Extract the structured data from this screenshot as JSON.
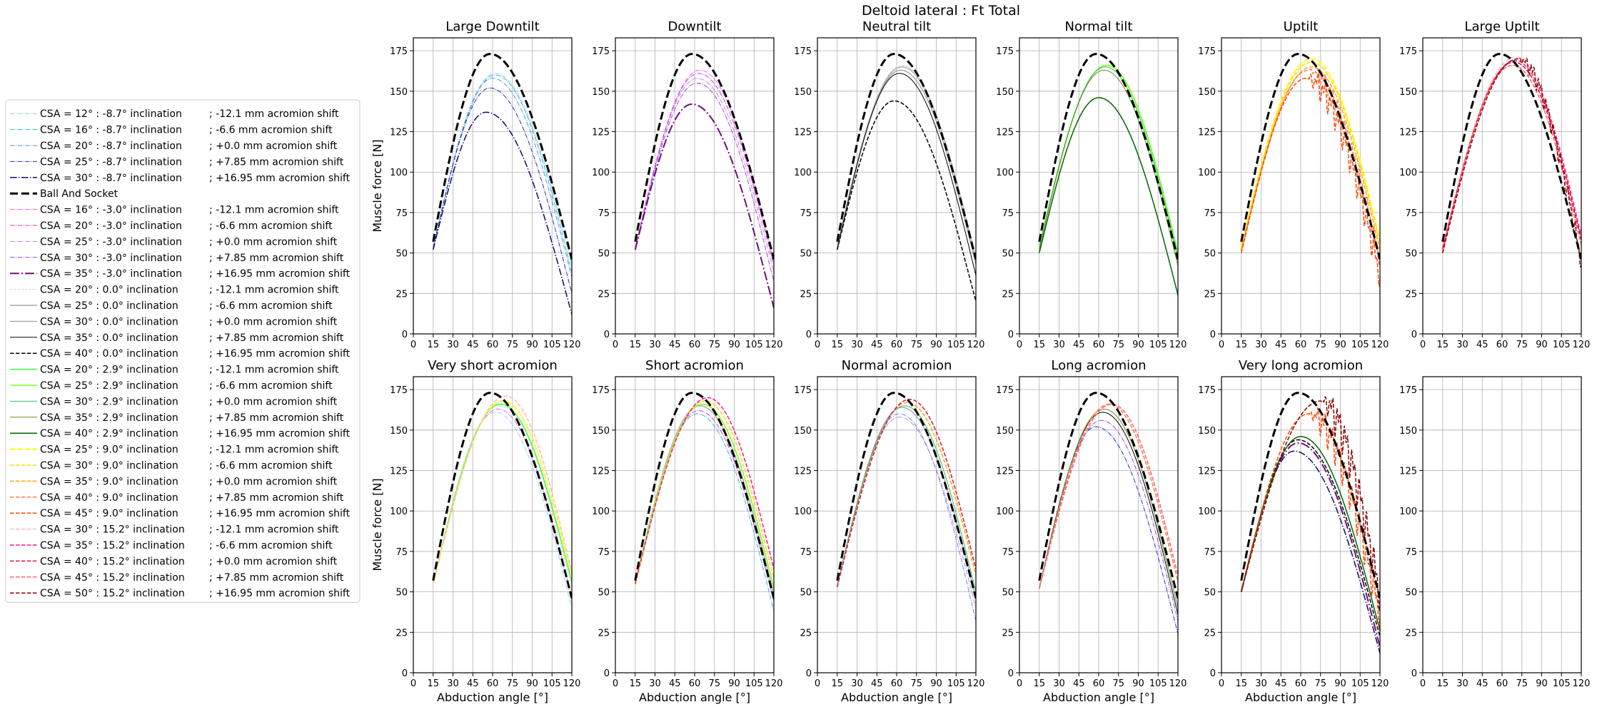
{
  "suptitle": "Deltoid lateral : Ft Total",
  "colors": {
    "ball_and_socket": "#000000",
    "grid": "#b0b0b0",
    "legend_border": "#cccccc"
  },
  "legend": [
    {
      "csa": "CSA = 12° : -8.7° inclination",
      "shift": "; -12.1 mm acromion shift",
      "color": "#7fd6e3",
      "dash": "dashdot",
      "width": 1
    },
    {
      "csa": "CSA = 16° : -8.7° inclination",
      "shift": "; -6.6 mm acromion shift",
      "color": "#29b6d8",
      "dash": "dashdot",
      "width": 1
    },
    {
      "csa": "CSA = 20° : -8.7° inclination",
      "shift": "; +0.0 mm acromion shift",
      "color": "#5c8fe0",
      "dash": "dashdot",
      "width": 1
    },
    {
      "csa": "CSA = 25° : -8.7° inclination",
      "shift": "; +7.85 mm acromion shift",
      "color": "#2231b8",
      "dash": "dashdot",
      "width": 1
    },
    {
      "csa": "CSA = 30° : -8.7° inclination",
      "shift": "; +16.95 mm acromion shift",
      "color": "#0b0b6b",
      "dash": "dashdot",
      "width": 1.5
    },
    {
      "csa": "Ball And Socket",
      "shift": "",
      "color": "#000000",
      "dash": "dashed",
      "width": 3
    },
    {
      "csa": "CSA = 16° : -3.0° inclination",
      "shift": "; -12.1 mm acromion shift",
      "color": "#ff55ff",
      "dash": "dashdot",
      "width": 1
    },
    {
      "csa": "CSA = 20° : -3.0° inclination",
      "shift": "; -6.6 mm acromion shift",
      "color": "#d43ad4",
      "dash": "dashdot",
      "width": 1
    },
    {
      "csa": "CSA = 25° : -3.0° inclination",
      "shift": "; +0.0 mm acromion shift",
      "color": "#c080e8",
      "dash": "dashdot",
      "width": 1
    },
    {
      "csa": "CSA = 30° : -3.0° inclination",
      "shift": "; +7.85 mm acromion shift",
      "color": "#9a44e6",
      "dash": "dashdot",
      "width": 1
    },
    {
      "csa": "CSA = 35° : -3.0° inclination",
      "shift": "; +16.95 mm acromion shift",
      "color": "#6e0d7a",
      "dash": "dashdot",
      "width": 2
    },
    {
      "csa": "CSA = 20° : 0.0° inclination",
      "shift": "; -12.1 mm acromion shift",
      "color": "#d3d3d3",
      "dash": "dashed",
      "width": 1
    },
    {
      "csa": "CSA = 25° : 0.0° inclination",
      "shift": "; -6.6 mm acromion shift",
      "color": "#bdbdbd",
      "dash": "solid",
      "width": 2
    },
    {
      "csa": "CSA = 30° : 0.0° inclination",
      "shift": "; +0.0 mm acromion shift",
      "color": "#8a8a8a",
      "dash": "solid",
      "width": 1
    },
    {
      "csa": "CSA = 35° : 0.0° inclination",
      "shift": "; +7.85 mm acromion shift",
      "color": "#000000",
      "dash": "solid",
      "width": 1
    },
    {
      "csa": "CSA = 40° : 0.0° inclination",
      "shift": "; +16.95 mm acromion shift",
      "color": "#000000",
      "dash": "dashed",
      "width": 1.5
    },
    {
      "csa": "CSA = 20° : 2.9° inclination",
      "shift": "; -12.1 mm acromion shift",
      "color": "#3cff3c",
      "dash": "solid",
      "width": 1.5
    },
    {
      "csa": "CSA = 25° : 2.9° inclination",
      "shift": "; -6.6 mm acromion shift",
      "color": "#7bff1e",
      "dash": "solid",
      "width": 1.5
    },
    {
      "csa": "CSA = 30° : 2.9° inclination",
      "shift": "; +0.0 mm acromion shift",
      "color": "#3cb371",
      "dash": "solid",
      "width": 1
    },
    {
      "csa": "CSA = 35° : 2.9° inclination",
      "shift": "; +7.85 mm acromion shift",
      "color": "#6b8e23",
      "dash": "solid",
      "width": 1
    },
    {
      "csa": "CSA = 40° : 2.9° inclination",
      "shift": "; +16.95 mm acromion shift",
      "color": "#006400",
      "dash": "solid",
      "width": 1.5
    },
    {
      "csa": "CSA = 25° : 9.0° inclination",
      "shift": "; -12.1 mm acromion shift",
      "color": "#ffff00",
      "dash": "dashed",
      "width": 2
    },
    {
      "csa": "CSA = 30° : 9.0° inclination",
      "shift": "; -6.6 mm acromion shift",
      "color": "#ffd700",
      "dash": "dashed",
      "width": 1.5
    },
    {
      "csa": "CSA = 35° : 9.0° inclination",
      "shift": "; +0.0 mm acromion shift",
      "color": "#ffa500",
      "dash": "dashed",
      "width": 1.5
    },
    {
      "csa": "CSA = 40° : 9.0° inclination",
      "shift": "; +7.85 mm acromion shift",
      "color": "#ff7f50",
      "dash": "dashed",
      "width": 1.5
    },
    {
      "csa": "CSA = 45° : 9.0° inclination",
      "shift": "; +16.95 mm acromion shift",
      "color": "#ff4500",
      "dash": "dashed",
      "width": 1.5
    },
    {
      "csa": "CSA = 30° : 15.2° inclination",
      "shift": "; -12.1 mm acromion shift",
      "color": "#ffb6c1",
      "dash": "dashed",
      "width": 1.5
    },
    {
      "csa": "CSA = 35° : 15.2° inclination",
      "shift": "; -6.6 mm acromion shift",
      "color": "#ff1493",
      "dash": "dashed",
      "width": 1.5
    },
    {
      "csa": "CSA = 40° : 15.2° inclination",
      "shift": "; +0.0 mm acromion shift",
      "color": "#dc143c",
      "dash": "dashed",
      "width": 1.5
    },
    {
      "csa": "CSA = 45° : 15.2° inclination",
      "shift": "; +7.85 mm acromion shift",
      "color": "#ff6060",
      "dash": "dashed",
      "width": 1.5
    },
    {
      "csa": "CSA = 50° : 15.2° inclination",
      "shift": "; +16.95 mm acromion shift",
      "color": "#8b0000",
      "dash": "dashed",
      "width": 1.5
    }
  ],
  "chart_data": {
    "type": "line",
    "title": "Deltoid lateral : Ft Total",
    "xlabel": "Abduction angle [°]",
    "ylabel": "Muscle force [N]",
    "xlim": [
      0,
      120
    ],
    "ylim": [
      0,
      183
    ],
    "xticks": [
      "0",
      "15",
      "30",
      "45",
      "60",
      "75",
      "90",
      "105",
      "120"
    ],
    "yticks": [
      "0",
      "25",
      "50",
      "75",
      "100",
      "125",
      "150",
      "175"
    ],
    "grid": true,
    "reference": {
      "name": "Ball And Socket",
      "peak_angle": 58,
      "peak": 173,
      "start": 57,
      "end": 46
    },
    "panels": [
      {
        "title": "Large Downtilt",
        "show_ylabel": true,
        "show_xlabel": false,
        "curves": [
          {
            "ref": 0,
            "peak_angle": 62,
            "peak": 161,
            "start": 53,
            "end": 42
          },
          {
            "ref": 1,
            "peak_angle": 62,
            "peak": 160,
            "start": 53,
            "end": 38
          },
          {
            "ref": 2,
            "peak_angle": 60,
            "peak": 158,
            "start": 53,
            "end": 35
          },
          {
            "ref": 3,
            "peak_angle": 58,
            "peak": 152,
            "start": 53,
            "end": 25
          },
          {
            "ref": 4,
            "peak_angle": 55,
            "peak": 137,
            "start": 52,
            "end": 12
          }
        ]
      },
      {
        "title": "Downtilt",
        "show_ylabel": false,
        "show_xlabel": false,
        "curves": [
          {
            "ref": 6,
            "peak_angle": 64,
            "peak": 163,
            "start": 53,
            "end": 45
          },
          {
            "ref": 7,
            "peak_angle": 63,
            "peak": 161,
            "start": 53,
            "end": 42
          },
          {
            "ref": 8,
            "peak_angle": 62,
            "peak": 158,
            "start": 52,
            "end": 38
          },
          {
            "ref": 9,
            "peak_angle": 62,
            "peak": 155,
            "start": 52,
            "end": 32
          },
          {
            "ref": 10,
            "peak_angle": 58,
            "peak": 142,
            "start": 52,
            "end": 16
          }
        ]
      },
      {
        "title": "Neutral tilt",
        "show_ylabel": false,
        "show_xlabel": false,
        "curves": [
          {
            "ref": 11,
            "peak_angle": 64,
            "peak": 166,
            "start": 54,
            "end": 48
          },
          {
            "ref": 12,
            "peak_angle": 64,
            "peak": 165,
            "start": 54,
            "end": 46
          },
          {
            "ref": 13,
            "peak_angle": 63,
            "peak": 163,
            "start": 53,
            "end": 43
          },
          {
            "ref": 14,
            "peak_angle": 62,
            "peak": 161,
            "start": 52,
            "end": 36
          },
          {
            "ref": 15,
            "peak_angle": 58,
            "peak": 144,
            "start": 52,
            "end": 20
          }
        ]
      },
      {
        "title": "Normal tilt",
        "show_ylabel": false,
        "show_xlabel": false,
        "curves": [
          {
            "ref": 16,
            "peak_angle": 66,
            "peak": 166,
            "start": 54,
            "end": 50
          },
          {
            "ref": 17,
            "peak_angle": 66,
            "peak": 166,
            "start": 53,
            "end": 48
          },
          {
            "ref": 18,
            "peak_angle": 65,
            "peak": 165,
            "start": 53,
            "end": 46
          },
          {
            "ref": 19,
            "peak_angle": 64,
            "peak": 163,
            "start": 52,
            "end": 42
          },
          {
            "ref": 20,
            "peak_angle": 60,
            "peak": 146,
            "start": 50,
            "end": 24
          }
        ]
      },
      {
        "title": "Uptilt",
        "show_ylabel": false,
        "show_xlabel": false,
        "curves": [
          {
            "ref": 21,
            "peak_angle": 68,
            "peak": 170,
            "start": 54,
            "end": 58
          },
          {
            "ref": 22,
            "peak_angle": 68,
            "peak": 168,
            "start": 53,
            "end": 56
          },
          {
            "ref": 23,
            "peak_angle": 68,
            "peak": 165,
            "start": 52,
            "end": 52
          },
          {
            "ref": 24,
            "peak_angle": 66,
            "peak": 163,
            "start": 51,
            "end": 46,
            "noise": 6
          },
          {
            "ref": 25,
            "peak_angle": 64,
            "peak": 158,
            "start": 50,
            "end": 36,
            "noise": 10
          }
        ]
      },
      {
        "title": "Large Uptilt",
        "show_ylabel": false,
        "show_xlabel": false,
        "curves": [
          {
            "ref": 26,
            "peak_angle": 70,
            "peak": 171,
            "start": 53,
            "end": 62
          },
          {
            "ref": 27,
            "peak_angle": 70,
            "peak": 169,
            "start": 53,
            "end": 60
          },
          {
            "ref": 28,
            "peak_angle": 69,
            "peak": 168,
            "start": 52,
            "end": 58
          },
          {
            "ref": 29,
            "peak_angle": 68,
            "peak": 166,
            "start": 51,
            "end": 55
          },
          {
            "ref": 30,
            "peak_angle": 72,
            "peak": 170,
            "start": 50,
            "end": 45,
            "noise": 7
          }
        ]
      },
      {
        "title": "Very short acromion",
        "show_ylabel": true,
        "show_xlabel": true,
        "curves": [
          {
            "ref": 0,
            "peak_angle": 62,
            "peak": 161,
            "start": 55,
            "end": 40
          },
          {
            "ref": 6,
            "peak_angle": 64,
            "peak": 163,
            "start": 55,
            "end": 46
          },
          {
            "ref": 11,
            "peak_angle": 66,
            "peak": 166,
            "start": 55,
            "end": 52
          },
          {
            "ref": 16,
            "peak_angle": 66,
            "peak": 166,
            "start": 55,
            "end": 56
          },
          {
            "ref": 21,
            "peak_angle": 68,
            "peak": 168,
            "start": 55,
            "end": 60
          },
          {
            "ref": 26,
            "peak_angle": 70,
            "peak": 171,
            "start": 55,
            "end": 62
          }
        ]
      },
      {
        "title": "Short acromion",
        "show_ylabel": false,
        "show_xlabel": true,
        "curves": [
          {
            "ref": 1,
            "peak_angle": 62,
            "peak": 160,
            "start": 55,
            "end": 38
          },
          {
            "ref": 7,
            "peak_angle": 63,
            "peak": 162,
            "start": 55,
            "end": 44
          },
          {
            "ref": 12,
            "peak_angle": 64,
            "peak": 165,
            "start": 55,
            "end": 48
          },
          {
            "ref": 17,
            "peak_angle": 66,
            "peak": 166,
            "start": 55,
            "end": 52
          },
          {
            "ref": 22,
            "peak_angle": 68,
            "peak": 168,
            "start": 54,
            "end": 58
          },
          {
            "ref": 27,
            "peak_angle": 70,
            "peak": 170,
            "start": 55,
            "end": 64
          }
        ]
      },
      {
        "title": "Normal acromion",
        "show_ylabel": false,
        "show_xlabel": true,
        "curves": [
          {
            "ref": 2,
            "peak_angle": 62,
            "peak": 160,
            "start": 54,
            "end": 32
          },
          {
            "ref": 8,
            "peak_angle": 62,
            "peak": 158,
            "start": 54,
            "end": 40
          },
          {
            "ref": 13,
            "peak_angle": 64,
            "peak": 164,
            "start": 54,
            "end": 46
          },
          {
            "ref": 18,
            "peak_angle": 66,
            "peak": 165,
            "start": 54,
            "end": 50
          },
          {
            "ref": 23,
            "peak_angle": 68,
            "peak": 167,
            "start": 53,
            "end": 60
          },
          {
            "ref": 28,
            "peak_angle": 70,
            "peak": 169,
            "start": 53,
            "end": 64
          }
        ]
      },
      {
        "title": "Long acromion",
        "show_ylabel": false,
        "show_xlabel": true,
        "curves": [
          {
            "ref": 3,
            "peak_angle": 58,
            "peak": 152,
            "start": 52,
            "end": 24
          },
          {
            "ref": 9,
            "peak_angle": 62,
            "peak": 156,
            "start": 52,
            "end": 32
          },
          {
            "ref": 14,
            "peak_angle": 63,
            "peak": 161,
            "start": 52,
            "end": 36
          },
          {
            "ref": 19,
            "peak_angle": 64,
            "peak": 163,
            "start": 52,
            "end": 40
          },
          {
            "ref": 24,
            "peak_angle": 68,
            "peak": 166,
            "start": 52,
            "end": 56
          },
          {
            "ref": 29,
            "peak_angle": 70,
            "peak": 166,
            "start": 52,
            "end": 60
          }
        ]
      },
      {
        "title": "Very long acromion",
        "show_ylabel": false,
        "show_xlabel": true,
        "curves": [
          {
            "ref": 4,
            "peak_angle": 55,
            "peak": 137,
            "start": 50,
            "end": 12
          },
          {
            "ref": 10,
            "peak_angle": 58,
            "peak": 142,
            "start": 50,
            "end": 16
          },
          {
            "ref": 15,
            "peak_angle": 58,
            "peak": 144,
            "start": 50,
            "end": 22
          },
          {
            "ref": 20,
            "peak_angle": 60,
            "peak": 146,
            "start": 50,
            "end": 26
          },
          {
            "ref": 25,
            "peak_angle": 66,
            "peak": 160,
            "start": 50,
            "end": 36,
            "noise": 12
          },
          {
            "ref": 30,
            "peak_angle": 75,
            "peak": 168,
            "start": 50,
            "end": 48,
            "noise": 14
          }
        ]
      },
      {
        "title": "",
        "show_ylabel": false,
        "show_xlabel": false,
        "empty": true,
        "curves": []
      }
    ]
  }
}
